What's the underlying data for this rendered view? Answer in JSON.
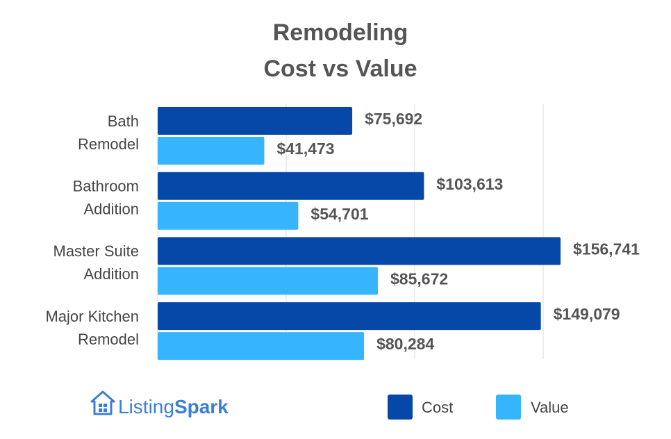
{
  "chart_data": {
    "type": "bar",
    "orientation": "horizontal",
    "title": [
      "Remodeling",
      "Cost vs Value"
    ],
    "categories": [
      [
        "Bath",
        "Remodel"
      ],
      [
        "Bathroom",
        "Addition"
      ],
      [
        "Master Suite",
        "Addition"
      ],
      [
        "Major Kitchen",
        "Remodel"
      ]
    ],
    "series": [
      {
        "name": "Cost",
        "color": "#0548a8",
        "values": [
          75692,
          103613,
          156741,
          149079
        ],
        "labels": [
          "$75,692",
          "$103,613",
          "$156,741",
          "$149,079"
        ]
      },
      {
        "name": "Value",
        "color": "#36b5fc",
        "values": [
          41473,
          54701,
          85672,
          80284
        ],
        "labels": [
          "$41,473",
          "$54,701",
          "$85,672",
          "$80,284"
        ]
      }
    ],
    "xlim": [
      0,
      160000
    ],
    "grid": true,
    "legend_position": "bottom-right"
  },
  "logo": {
    "icon": "house-icon",
    "text_part1": "Listing",
    "text_part2": "Spark",
    "color": "#3a7fd5"
  }
}
